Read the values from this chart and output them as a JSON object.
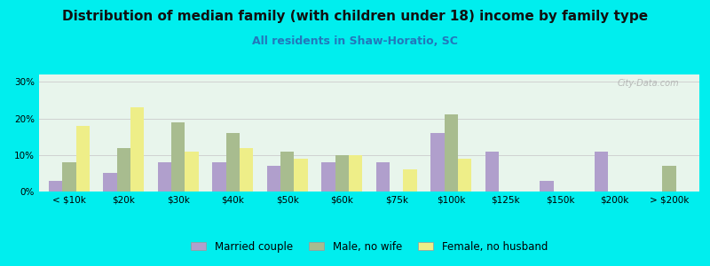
{
  "title": "Distribution of median family (with children under 18) income by family type",
  "subtitle": "All residents in Shaw-Horatio, SC",
  "categories": [
    "< $10k",
    "$20k",
    "$30k",
    "$40k",
    "$50k",
    "$60k",
    "$75k",
    "$100k",
    "$125k",
    "$150k",
    "$200k",
    "> $200k"
  ],
  "married_couple": [
    3,
    5,
    8,
    8,
    7,
    8,
    8,
    16,
    11,
    3,
    11,
    0
  ],
  "male_no_wife": [
    8,
    12,
    19,
    16,
    11,
    10,
    0,
    21,
    0,
    0,
    0,
    7
  ],
  "female_no_husband": [
    18,
    23,
    11,
    12,
    9,
    10,
    6,
    9,
    0,
    0,
    0,
    0
  ],
  "married_color": "#b09fcc",
  "male_color": "#a8bc8f",
  "female_color": "#eeee88",
  "bg_outer": "#00eeee",
  "bg_plot": "#e8f5ec",
  "yticks": [
    0,
    10,
    20,
    30
  ],
  "ylim": [
    0,
    32
  ],
  "watermark": "City-Data.com",
  "legend_labels": [
    "Married couple",
    "Male, no wife",
    "Female, no husband"
  ],
  "title_fontsize": 11,
  "subtitle_fontsize": 9,
  "axis_fontsize": 7.5
}
